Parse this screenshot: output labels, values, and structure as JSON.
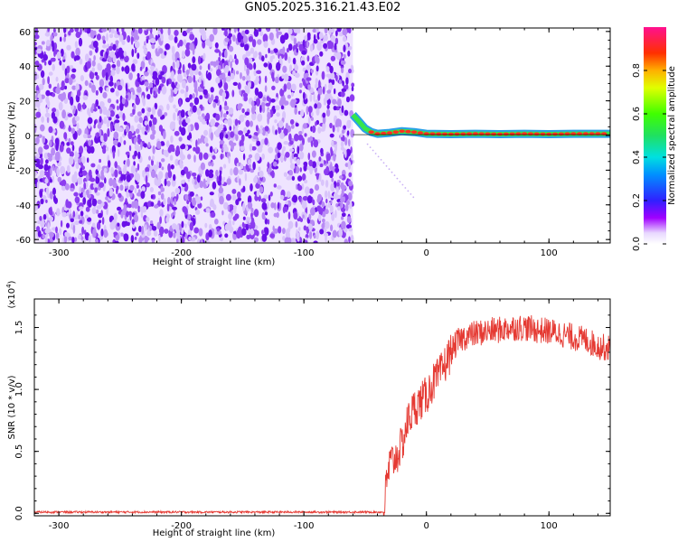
{
  "title": "GN05.2025.316.21.43.E02",
  "colors": {
    "scatter_purple": "#7a1cf0",
    "signal_red": "#e53a33",
    "track_green": "#35e64a",
    "track_red": "#ff3020"
  },
  "chart_data": [
    {
      "type": "heatmap",
      "xlabel": "Height of straight line (km)",
      "ylabel": "Frequency (Hz)",
      "xlim": [
        -320,
        150
      ],
      "ylim": [
        -62,
        62
      ],
      "xticks": [
        -300,
        -200,
        -100,
        0,
        100
      ],
      "yticks": [
        -60,
        -40,
        -20,
        0,
        20,
        40,
        60
      ],
      "noise_region_x": [
        -320,
        -60
      ],
      "track": {
        "x": [
          -60,
          -55,
          -50,
          -45,
          -40,
          -30,
          -20,
          -10,
          0,
          20,
          40,
          60,
          80,
          100,
          120,
          150
        ],
        "y": [
          12,
          8,
          4,
          2,
          1,
          1.5,
          2.5,
          2,
          1,
          0.8,
          1,
          0.8,
          1,
          0.8,
          1,
          1
        ]
      },
      "colorbar": {
        "label": "Normalized spectral amplitude",
        "ticks": [
          "0.0",
          "0.2",
          "0.4",
          "0.6",
          "0.8"
        ],
        "range": [
          0,
          1
        ]
      }
    },
    {
      "type": "line",
      "xlabel": "Height of straight line (km)",
      "ylabel": "SNR (10 * v/v)",
      "scale_label_base": "(x10",
      "scale_label_exp": "4",
      "scale_label_close": ")",
      "xlim": [
        -320,
        150
      ],
      "ylim": [
        -0.02,
        1.73
      ],
      "xticks": [
        -300,
        -200,
        -100,
        0,
        100
      ],
      "yticks": [
        "0.0",
        "0.5",
        "1.0",
        "1.5"
      ],
      "series": [
        {
          "x": [
            -320,
            -35,
            -33,
            -30,
            -25,
            -20,
            -15,
            -10,
            -5,
            0,
            5,
            10,
            15,
            20,
            25,
            30,
            40,
            50,
            60,
            70,
            80,
            90,
            100,
            110,
            120,
            130,
            140,
            150
          ],
          "y": [
            0.01,
            0.01,
            0.2,
            0.4,
            0.45,
            0.55,
            0.75,
            0.85,
            0.9,
            0.95,
            1.05,
            1.1,
            1.2,
            1.3,
            1.38,
            1.42,
            1.45,
            1.47,
            1.48,
            1.5,
            1.5,
            1.48,
            1.47,
            1.45,
            1.42,
            1.4,
            1.35,
            1.33
          ]
        }
      ]
    }
  ]
}
